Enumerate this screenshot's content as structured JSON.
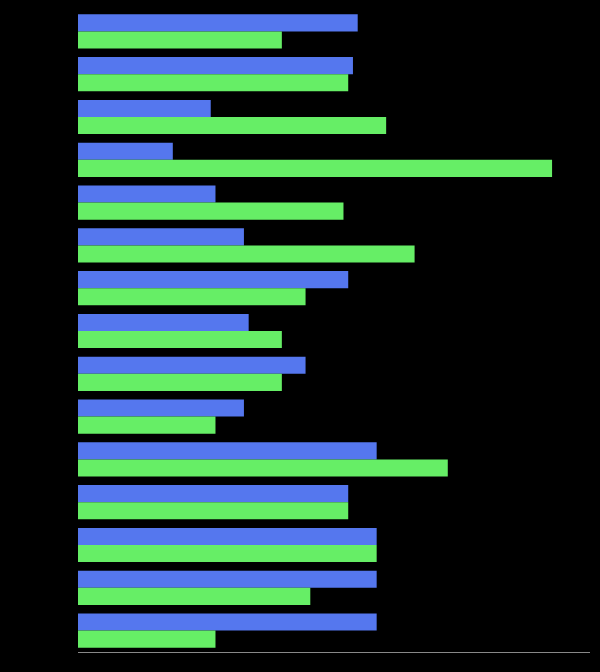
{
  "chart_data": {
    "type": "bar",
    "orientation": "horizontal",
    "categories": [
      null,
      null,
      null,
      null,
      null,
      null,
      null,
      null,
      null,
      null,
      null,
      null,
      null,
      null,
      null
    ],
    "series": [
      {
        "color": "#5577ee",
        "values": [
          59,
          58,
          28,
          20,
          29,
          35,
          57,
          36,
          48,
          35,
          63,
          57,
          63,
          63,
          63
        ]
      },
      {
        "color": "#66ee66",
        "values": [
          43,
          57,
          65,
          100,
          56,
          71,
          48,
          43,
          43,
          29,
          78,
          57,
          63,
          49,
          29
        ]
      }
    ],
    "xlim": [
      0,
      108
    ],
    "grid": false,
    "tick_labels": false
  }
}
